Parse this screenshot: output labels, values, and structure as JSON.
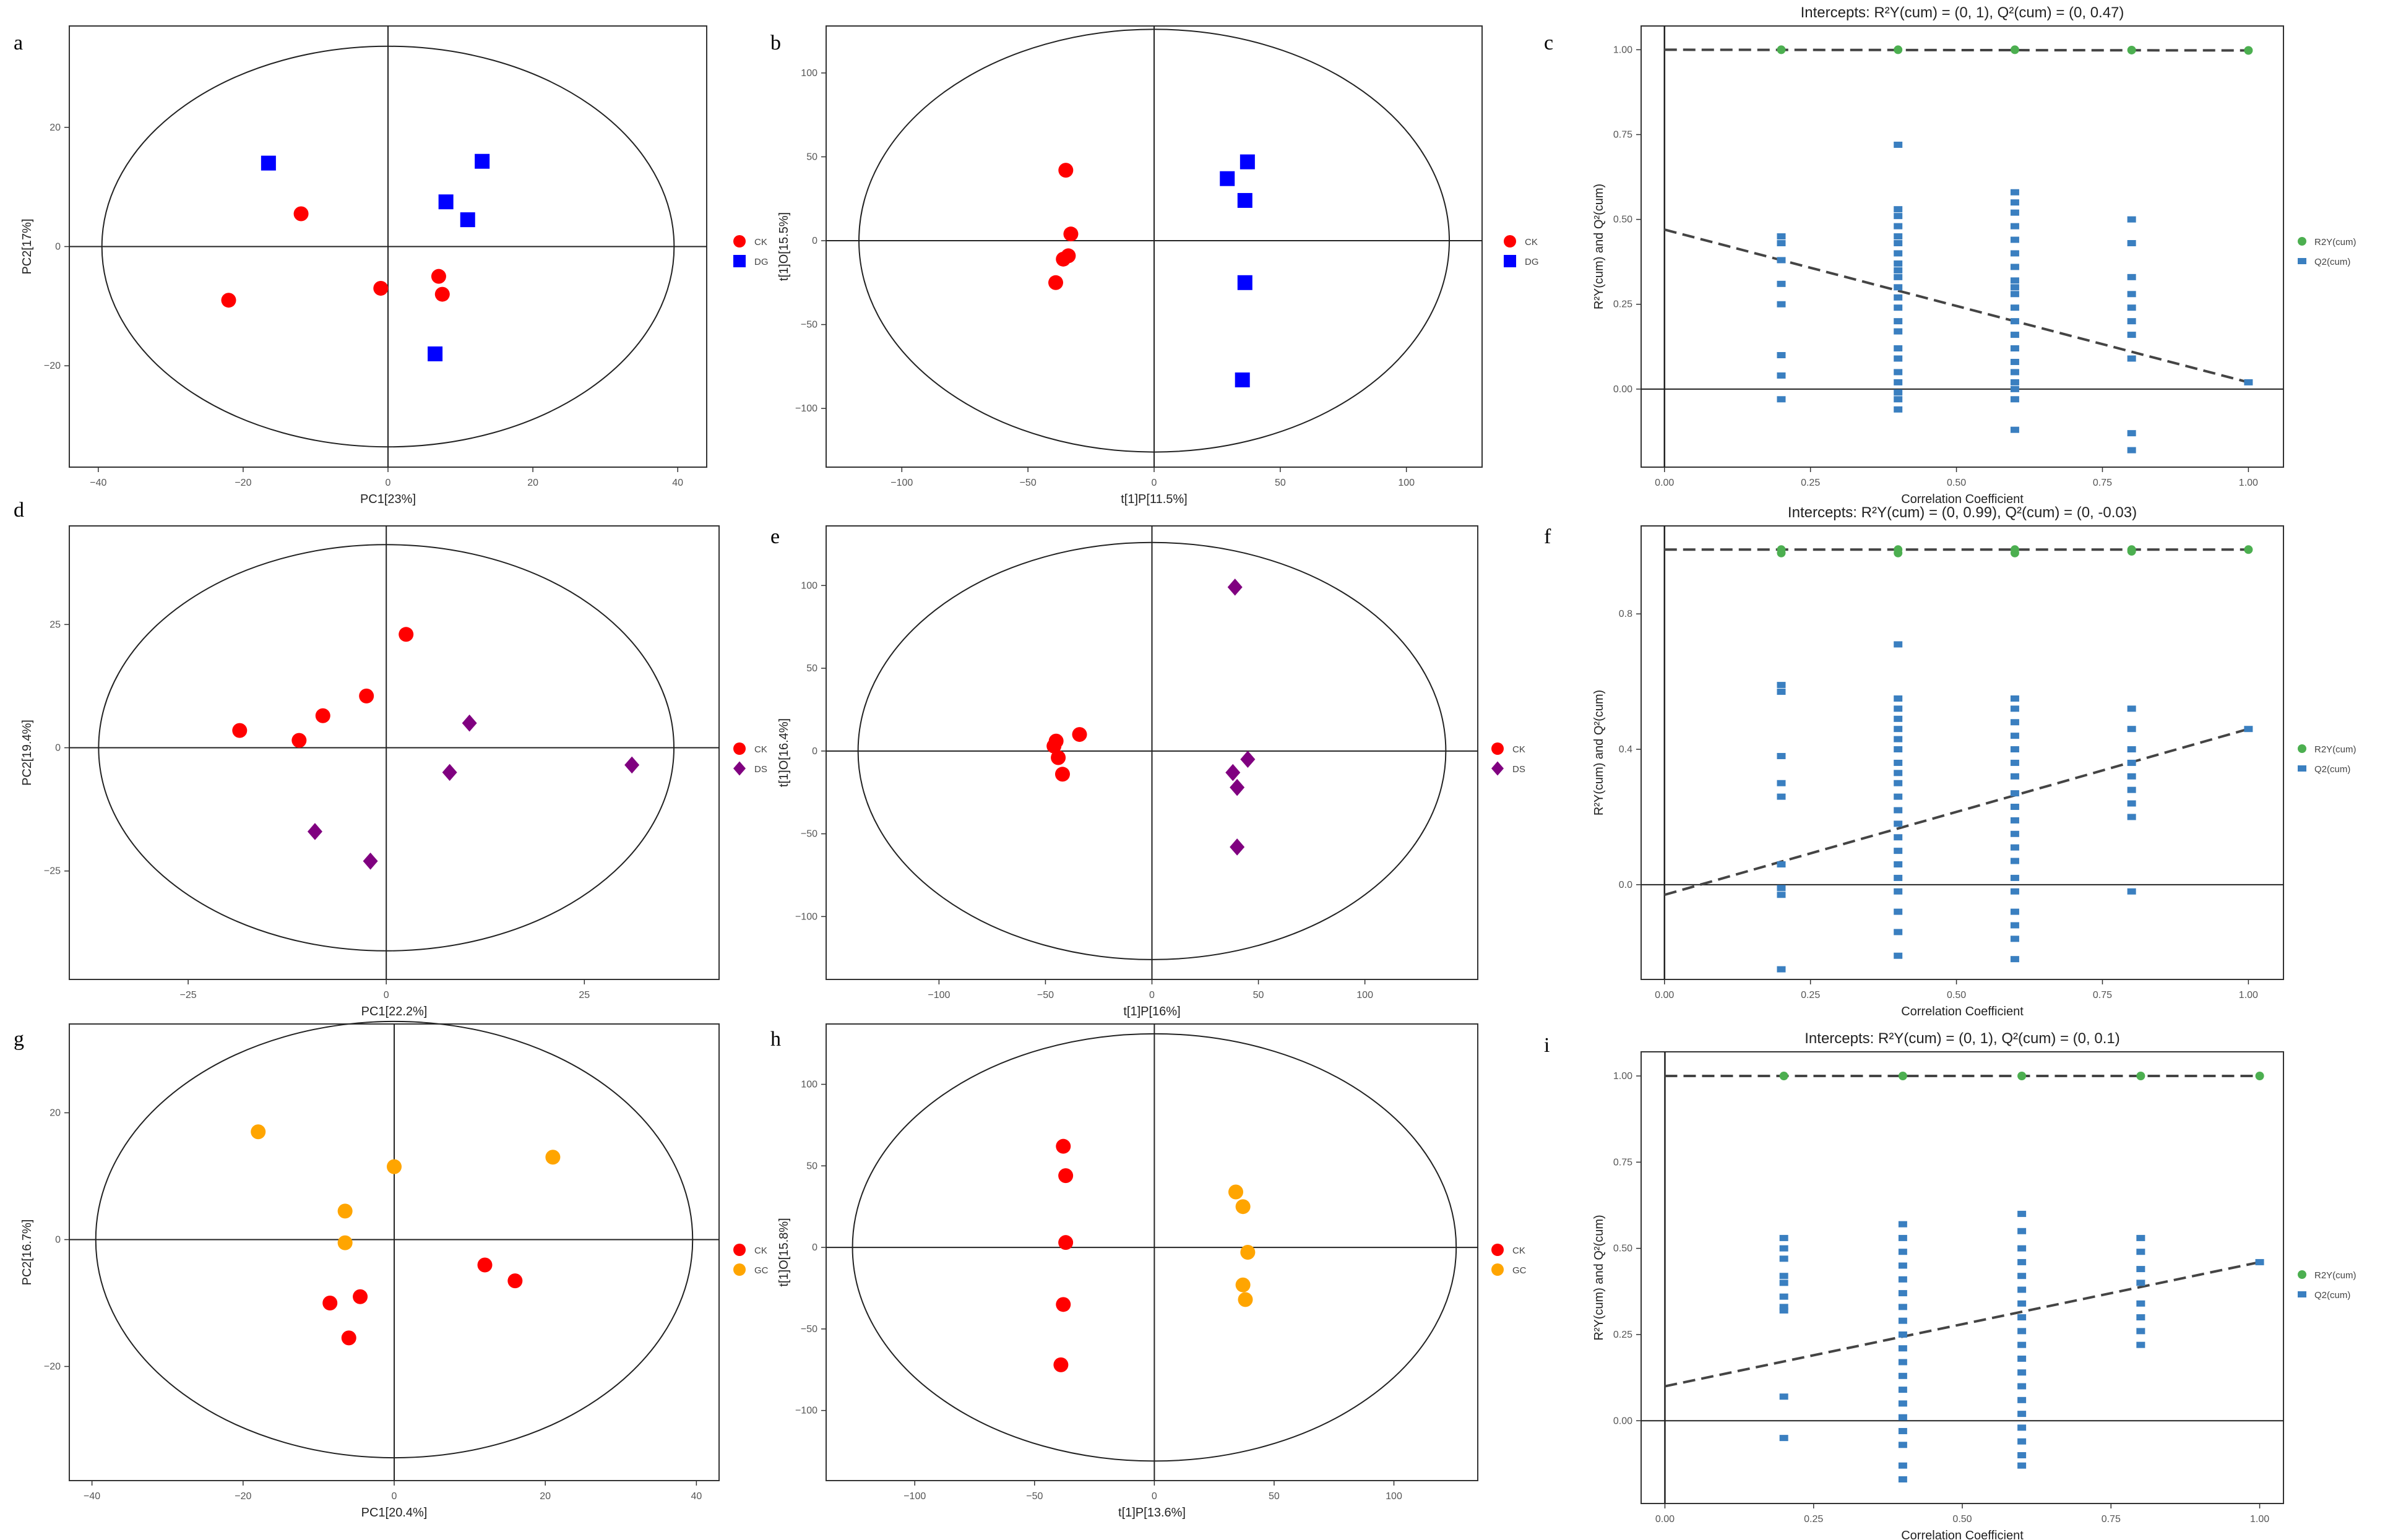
{
  "figure": {
    "colors": {
      "CK": "#ff0000",
      "DG": "#0000ff",
      "DS": "#800080",
      "GC": "#ffa500",
      "R2": "#4caf50",
      "Q2": "#3a7fc0"
    }
  },
  "chart_data": [
    {
      "id": "a",
      "panel_label": "a",
      "type": "scatter",
      "title": "",
      "xlabel": "PC1[23%]",
      "ylabel": "PC2[17%]",
      "xlim": [
        -44,
        44
      ],
      "ylim": [
        -37,
        37
      ],
      "xticks": [
        -40,
        -20,
        0,
        20,
        40
      ],
      "yticks": [
        -20,
        0,
        20
      ],
      "ellipse": {
        "cx": 0,
        "cy": 0,
        "rx": 39.5,
        "ry": 33.6
      },
      "groups": [
        {
          "name": "CK",
          "color": "#ff0000",
          "marker": "circle",
          "points": [
            [
              -22,
              -9
            ],
            [
              -12,
              5.5
            ],
            [
              -1,
              -7
            ],
            [
              7,
              -5
            ],
            [
              7.5,
              -8
            ]
          ]
        },
        {
          "name": "DG",
          "color": "#0000ff",
          "marker": "square",
          "points": [
            [
              -16.5,
              14
            ],
            [
              8,
              7.5
            ],
            [
              11,
              4.5
            ],
            [
              13,
              14.3
            ],
            [
              6.5,
              -18
            ]
          ]
        }
      ]
    },
    {
      "id": "b",
      "panel_label": "b",
      "type": "scatter",
      "title": "",
      "xlabel": "t[1]P[11.5%]",
      "ylabel": "t[1]O[15.5%]",
      "xlim": [
        -130,
        130
      ],
      "ylim": [
        -135,
        128
      ],
      "xticks": [
        -100,
        -50,
        0,
        50,
        100
      ],
      "yticks": [
        -100,
        -50,
        0,
        50,
        100
      ],
      "ellipse": {
        "cx": 0,
        "cy": 0,
        "rx": 117,
        "ry": 126
      },
      "groups": [
        {
          "name": "CK",
          "color": "#ff0000",
          "marker": "circle",
          "points": [
            [
              -35,
              42
            ],
            [
              -33,
              4
            ],
            [
              -34,
              -9
            ],
            [
              -36,
              -11
            ],
            [
              -39,
              -25
            ]
          ]
        },
        {
          "name": "DG",
          "color": "#0000ff",
          "marker": "square",
          "points": [
            [
              29,
              37
            ],
            [
              37,
              47
            ],
            [
              36,
              24
            ],
            [
              36,
              -25
            ],
            [
              35,
              -83
            ]
          ]
        }
      ]
    },
    {
      "id": "c",
      "panel_label": "c",
      "type": "scatter",
      "title": "Intercepts: R²Y(cum) = (0, 1), Q²(cum) = (0, 0.47)",
      "xlabel": "Correlation Coefficient",
      "ylabel": "R²Y(cum) and Q²(cum)",
      "xlim": [
        -0.04,
        1.06
      ],
      "ylim": [
        -0.23,
        1.07
      ],
      "xticks": [
        0.0,
        0.25,
        0.5,
        0.75,
        1.0
      ],
      "yticks": [
        0.0,
        0.25,
        0.5,
        0.75,
        1.0
      ],
      "xtick_labels": [
        "0.00",
        "0.25",
        "0.50",
        "0.75",
        "1.00"
      ],
      "ytick_labels": [
        "0.00",
        "0.25",
        "0.50",
        "0.75",
        "1.00"
      ],
      "legend": [
        "R2Y(cum)",
        "Q2(cum)"
      ],
      "r2": {
        "x": [
          0.2,
          0.4,
          0.6,
          0.8,
          1.0
        ],
        "y": [
          1.0,
          1.0,
          1.0,
          0.999,
          0.998
        ]
      },
      "q2": {
        "x": [
          0.2,
          0.2,
          0.2,
          0.2,
          0.2,
          0.2,
          0.2,
          0.2,
          0.4,
          0.4,
          0.4,
          0.4,
          0.4,
          0.4,
          0.4,
          0.4,
          0.4,
          0.4,
          0.4,
          0.4,
          0.4,
          0.4,
          0.4,
          0.4,
          0.4,
          0.4,
          0.4,
          0.4,
          0.4,
          0.4,
          0.6,
          0.6,
          0.6,
          0.6,
          0.6,
          0.6,
          0.6,
          0.6,
          0.6,
          0.6,
          0.6,
          0.6,
          0.6,
          0.6,
          0.6,
          0.6,
          0.6,
          0.6,
          0.6,
          0.6,
          0.8,
          0.8,
          0.8,
          0.8,
          0.8,
          0.8,
          0.8,
          0.8,
          0.8,
          0.8,
          1.0
        ],
        "y": [
          0.45,
          0.43,
          0.38,
          0.31,
          0.25,
          0.1,
          0.04,
          -0.03,
          0.72,
          0.53,
          0.51,
          0.48,
          0.45,
          0.4,
          0.37,
          0.33,
          0.3,
          0.27,
          0.24,
          0.2,
          0.17,
          0.12,
          0.09,
          0.05,
          0.02,
          -0.01,
          -0.03,
          0.43,
          0.35,
          -0.06,
          0.58,
          0.55,
          0.52,
          0.48,
          0.44,
          0.4,
          0.36,
          0.32,
          0.28,
          0.24,
          0.2,
          0.16,
          0.12,
          0.08,
          0.05,
          0.02,
          0.0,
          -0.03,
          -0.12,
          0.3,
          0.5,
          0.43,
          0.33,
          0.28,
          0.24,
          0.2,
          0.16,
          0.09,
          -0.13,
          -0.18,
          0.02
        ]
      },
      "r2_fit": {
        "x": [
          0,
          1
        ],
        "y": [
          1.0,
          0.998
        ]
      },
      "q2_fit": {
        "x": [
          0,
          1
        ],
        "y": [
          0.47,
          0.02
        ]
      }
    },
    {
      "id": "d",
      "panel_label": "d",
      "type": "scatter",
      "title": "",
      "xlabel": "PC1[22.2%]",
      "ylabel": "PC2[19.4%]",
      "xlim": [
        -40,
        42
      ],
      "ylim": [
        -47,
        45
      ],
      "xticks": [
        -25,
        0,
        25
      ],
      "yticks": [
        -25,
        0,
        25
      ],
      "ellipse": {
        "cx": 0,
        "cy": 0,
        "rx": 36.3,
        "ry": 41.2
      },
      "groups": [
        {
          "name": "CK",
          "color": "#ff0000",
          "marker": "circle",
          "points": [
            [
              -18.5,
              3.5
            ],
            [
              -11,
              1.5
            ],
            [
              -8,
              6.5
            ],
            [
              -2.5,
              10.5
            ],
            [
              2.5,
              23
            ]
          ]
        },
        {
          "name": "DS",
          "color": "#800080",
          "marker": "diamond",
          "points": [
            [
              10.5,
              5
            ],
            [
              8,
              -5
            ],
            [
              31,
              -3.5
            ],
            [
              -9,
              -17
            ],
            [
              -2,
              -23
            ]
          ]
        }
      ]
    },
    {
      "id": "e",
      "panel_label": "e",
      "type": "scatter",
      "title": "",
      "xlabel": "t[1]P[16%]",
      "ylabel": "t[1]O[16.4%]",
      "xlim": [
        -153,
        153
      ],
      "ylim": [
        -138,
        136
      ],
      "xticks": [
        -100,
        -50,
        0,
        50,
        100
      ],
      "yticks": [
        -100,
        -50,
        0,
        50,
        100
      ],
      "ellipse": {
        "cx": 0,
        "cy": 0,
        "rx": 138,
        "ry": 126
      },
      "groups": [
        {
          "name": "CK",
          "color": "#ff0000",
          "marker": "circle",
          "points": [
            [
              -45,
              6
            ],
            [
              -46,
              3
            ],
            [
              -44,
              -4
            ],
            [
              -42,
              -14
            ],
            [
              -34,
              10
            ]
          ]
        },
        {
          "name": "DS",
          "color": "#800080",
          "marker": "diamond",
          "points": [
            [
              39,
              99
            ],
            [
              45,
              -5
            ],
            [
              38,
              -13
            ],
            [
              40,
              -22
            ],
            [
              40,
              -58
            ]
          ]
        }
      ]
    },
    {
      "id": "f",
      "panel_label": "f",
      "type": "scatter",
      "title": "Intercepts: R²Y(cum) = (0, 0.99), Q²(cum) = (0, -0.03)",
      "xlabel": "Correlation Coefficient",
      "ylabel": "R²Y(cum) and Q²(cum)",
      "xlim": [
        -0.04,
        1.06
      ],
      "ylim": [
        -0.28,
        1.06
      ],
      "xticks": [
        0.0,
        0.25,
        0.5,
        0.75,
        1.0
      ],
      "yticks": [
        0.0,
        0.4,
        0.8
      ],
      "xtick_labels": [
        "0.00",
        "0.25",
        "0.50",
        "0.75",
        "1.00"
      ],
      "ytick_labels": [
        "0.0",
        "0.4",
        "0.8"
      ],
      "legend": [
        "R2Y(cum)",
        "Q2(cum)"
      ],
      "r2": {
        "x": [
          0.2,
          0.2,
          0.4,
          0.4,
          0.6,
          0.6,
          0.8,
          0.8,
          1.0
        ],
        "y": [
          0.99,
          0.98,
          0.99,
          0.98,
          0.99,
          0.98,
          0.99,
          0.985,
          0.99
        ]
      },
      "q2": {
        "x": [
          0.2,
          0.2,
          0.2,
          0.2,
          0.2,
          0.2,
          0.2,
          0.2,
          0.2,
          0.4,
          0.4,
          0.4,
          0.4,
          0.4,
          0.4,
          0.4,
          0.4,
          0.4,
          0.4,
          0.4,
          0.4,
          0.4,
          0.4,
          0.4,
          0.4,
          0.4,
          0.4,
          0.4,
          0.4,
          0.4,
          0.6,
          0.6,
          0.6,
          0.6,
          0.6,
          0.6,
          0.6,
          0.6,
          0.6,
          0.6,
          0.6,
          0.6,
          0.6,
          0.6,
          0.6,
          0.6,
          0.6,
          0.6,
          0.6,
          0.8,
          0.8,
          0.8,
          0.8,
          0.8,
          0.8,
          0.8,
          0.8,
          0.8,
          1.0
        ],
        "y": [
          0.59,
          0.57,
          0.38,
          0.3,
          0.26,
          0.06,
          -0.01,
          -0.03,
          -0.25,
          0.71,
          0.55,
          0.52,
          0.49,
          0.46,
          0.43,
          0.4,
          0.36,
          0.33,
          0.3,
          0.26,
          0.22,
          0.18,
          0.14,
          0.1,
          0.06,
          0.02,
          -0.02,
          -0.08,
          -0.14,
          -0.21,
          0.55,
          0.52,
          0.48,
          0.44,
          0.4,
          0.36,
          0.32,
          0.27,
          0.23,
          0.19,
          0.15,
          0.11,
          0.07,
          0.02,
          -0.02,
          -0.08,
          -0.12,
          -0.16,
          -0.22,
          0.52,
          0.46,
          0.4,
          0.36,
          0.32,
          0.28,
          0.24,
          0.2,
          -0.02,
          0.46
        ]
      },
      "r2_fit": {
        "x": [
          0,
          1
        ],
        "y": [
          0.99,
          0.99
        ]
      },
      "q2_fit": {
        "x": [
          0,
          1
        ],
        "y": [
          -0.03,
          0.46
        ]
      }
    },
    {
      "id": "g",
      "panel_label": "g",
      "type": "scatter",
      "title": "",
      "xlabel": "PC1[20.4%]",
      "ylabel": "PC2[16.7%]",
      "xlim": [
        -43,
        43
      ],
      "ylim": [
        -38,
        34
      ],
      "xticks": [
        -40,
        -20,
        0,
        20,
        40
      ],
      "yticks": [
        -20,
        0,
        20
      ],
      "ellipse": {
        "cx": 0,
        "cy": 0,
        "rx": 39.5,
        "ry": 34.4
      },
      "groups": [
        {
          "name": "CK",
          "color": "#ff0000",
          "marker": "circle",
          "points": [
            [
              -8.5,
              -10
            ],
            [
              -4.5,
              -9
            ],
            [
              -6,
              -15.5
            ],
            [
              12,
              -4
            ],
            [
              16,
              -6.5
            ]
          ]
        },
        {
          "name": "GC",
          "color": "#ffa500",
          "marker": "circle",
          "points": [
            [
              -18,
              17
            ],
            [
              -6.5,
              4.5
            ],
            [
              -6.5,
              -0.5
            ],
            [
              0,
              11.5
            ],
            [
              21,
              13
            ]
          ]
        }
      ]
    },
    {
      "id": "h",
      "panel_label": "h",
      "type": "scatter",
      "title": "",
      "xlabel": "t[1]P[13.6%]",
      "ylabel": "t[1]O[15.8%]",
      "xlim": [
        -137,
        135
      ],
      "ylim": [
        -143,
        137
      ],
      "xticks": [
        -100,
        -50,
        0,
        50,
        100
      ],
      "yticks": [
        -100,
        -50,
        0,
        50,
        100
      ],
      "ellipse": {
        "cx": 0,
        "cy": 0,
        "rx": 126,
        "ry": 131
      },
      "groups": [
        {
          "name": "CK",
          "color": "#ff0000",
          "marker": "circle",
          "points": [
            [
              -38,
              62
            ],
            [
              -37,
              44
            ],
            [
              -37,
              3
            ],
            [
              -38,
              -35
            ],
            [
              -39,
              -72
            ]
          ]
        },
        {
          "name": "GC",
          "color": "#ffa500",
          "marker": "circle",
          "points": [
            [
              34,
              34
            ],
            [
              37,
              25
            ],
            [
              39,
              -3
            ],
            [
              37,
              -23
            ],
            [
              38,
              -32
            ]
          ]
        }
      ]
    },
    {
      "id": "i",
      "panel_label": "i",
      "type": "scatter",
      "title": "Intercepts: R²Y(cum) = (0, 1), Q²(cum) = (0, 0.1)",
      "xlabel": "Correlation Coefficient",
      "ylabel": "R²Y(cum) and Q²(cum)",
      "xlim": [
        -0.04,
        1.04
      ],
      "ylim": [
        -0.24,
        1.07
      ],
      "xticks": [
        0.0,
        0.25,
        0.5,
        0.75,
        1.0
      ],
      "yticks": [
        0.0,
        0.25,
        0.5,
        0.75,
        1.0
      ],
      "xtick_labels": [
        "0.00",
        "0.25",
        "0.50",
        "0.75",
        "1.00"
      ],
      "ytick_labels": [
        "0.00",
        "0.25",
        "0.50",
        "0.75",
        "1.00"
      ],
      "legend": [
        "R2Y(cum)",
        "Q2(cum)"
      ],
      "r2": {
        "x": [
          0.2,
          0.4,
          0.6,
          0.8,
          1.0
        ],
        "y": [
          1.0,
          1.0,
          1.0,
          1.0,
          1.0
        ]
      },
      "q2": {
        "x": [
          0.2,
          0.2,
          0.2,
          0.2,
          0.2,
          0.2,
          0.2,
          0.2,
          0.2,
          0.2,
          0.4,
          0.4,
          0.4,
          0.4,
          0.4,
          0.4,
          0.4,
          0.4,
          0.4,
          0.4,
          0.4,
          0.4,
          0.4,
          0.4,
          0.4,
          0.4,
          0.4,
          0.4,
          0.4,
          0.6,
          0.6,
          0.6,
          0.6,
          0.6,
          0.6,
          0.6,
          0.6,
          0.6,
          0.6,
          0.6,
          0.6,
          0.6,
          0.6,
          0.6,
          0.6,
          0.6,
          0.6,
          0.6,
          0.8,
          0.8,
          0.8,
          0.8,
          0.8,
          0.8,
          0.8,
          0.8,
          1.0
        ],
        "y": [
          0.53,
          0.5,
          0.47,
          0.42,
          0.4,
          0.36,
          0.33,
          0.32,
          0.07,
          -0.05,
          0.57,
          0.53,
          0.49,
          0.45,
          0.41,
          0.37,
          0.33,
          0.29,
          0.25,
          0.21,
          0.17,
          0.13,
          0.09,
          0.05,
          0.01,
          -0.03,
          -0.07,
          -0.13,
          -0.17,
          0.6,
          0.55,
          0.5,
          0.46,
          0.42,
          0.38,
          0.34,
          0.3,
          0.26,
          0.22,
          0.18,
          0.14,
          0.1,
          0.06,
          0.02,
          -0.02,
          -0.06,
          -0.1,
          -0.13,
          0.53,
          0.49,
          0.44,
          0.4,
          0.34,
          0.3,
          0.26,
          0.22,
          0.46
        ]
      },
      "r2_fit": {
        "x": [
          0,
          1
        ],
        "y": [
          1.0,
          1.0
        ]
      },
      "q2_fit": {
        "x": [
          0,
          1
        ],
        "y": [
          0.1,
          0.46
        ]
      }
    }
  ]
}
